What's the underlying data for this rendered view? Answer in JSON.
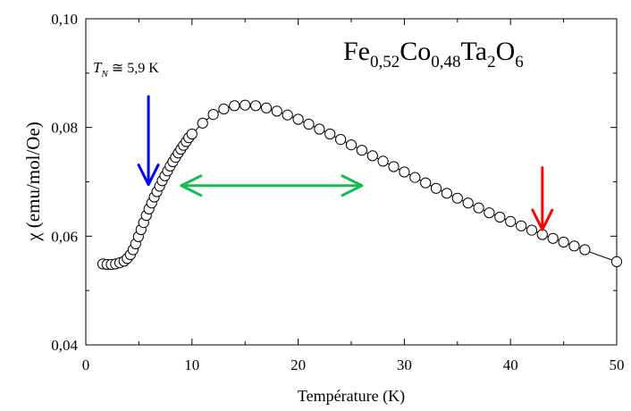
{
  "chart_data": {
    "type": "scatter",
    "title_parts": [
      {
        "text": "Fe",
        "sub": false
      },
      {
        "text": "0,52",
        "sub": true
      },
      {
        "text": "Co",
        "sub": false
      },
      {
        "text": "0,48",
        "sub": true
      },
      {
        "text": "Ta",
        "sub": false
      },
      {
        "text": "2",
        "sub": true
      },
      {
        "text": "O",
        "sub": false
      },
      {
        "text": "6",
        "sub": true
      }
    ],
    "xlabel": "Température (K)",
    "ylabel": "χ (emu/mol/Oe)",
    "xlim": [
      0,
      50
    ],
    "ylim": [
      0.04,
      0.1
    ],
    "xticks": [
      {
        "value": 0,
        "label": "0"
      },
      {
        "value": 10,
        "label": "10"
      },
      {
        "value": 20,
        "label": "20"
      },
      {
        "value": 30,
        "label": "30"
      },
      {
        "value": 40,
        "label": "40"
      },
      {
        "value": 50,
        "label": "50"
      }
    ],
    "yticks": [
      {
        "value": 0.04,
        "label": "0,04"
      },
      {
        "value": 0.06,
        "label": "0,06"
      },
      {
        "value": 0.08,
        "label": "0,08"
      },
      {
        "value": 0.1,
        "label": "0,10"
      }
    ],
    "grid": false,
    "series": [
      {
        "marker": "open-circle",
        "color": "#000000",
        "x": [
          1.6,
          2.0,
          2.4,
          2.8,
          3.2,
          3.6,
          3.9,
          4.2,
          4.45,
          4.7,
          4.95,
          5.2,
          5.45,
          5.7,
          5.95,
          6.2,
          6.45,
          6.7,
          6.95,
          7.2,
          7.45,
          7.7,
          7.95,
          8.2,
          8.45,
          8.7,
          8.95,
          9.2,
          9.45,
          9.7,
          10.0,
          11.0,
          12.0,
          13.0,
          14.0,
          15.0,
          16.0,
          17.0,
          18.0,
          19.0,
          20.0,
          21.0,
          22.0,
          23.0,
          24.0,
          25.0,
          26.0,
          27.0,
          28.0,
          29.0,
          30.0,
          31.0,
          32.0,
          33.0,
          34.0,
          35.0,
          36.0,
          37.0,
          38.0,
          39.0,
          40.0,
          41.0,
          42.0,
          43.0,
          44.0,
          45.0,
          46.0,
          47.0,
          50.0
        ],
        "y": [
          0.0549,
          0.0548,
          0.0548,
          0.0549,
          0.0551,
          0.0554,
          0.0559,
          0.0566,
          0.0575,
          0.0586,
          0.0599,
          0.0612,
          0.0625,
          0.0638,
          0.065,
          0.0661,
          0.0672,
          0.0682,
          0.0692,
          0.0702,
          0.0711,
          0.072,
          0.0729,
          0.0737,
          0.0745,
          0.0753,
          0.076,
          0.0767,
          0.0774,
          0.0781,
          0.0788,
          0.0808,
          0.0824,
          0.0834,
          0.084,
          0.0841,
          0.084,
          0.0836,
          0.083,
          0.0823,
          0.0815,
          0.0806,
          0.0797,
          0.0788,
          0.0778,
          0.0768,
          0.0758,
          0.0748,
          0.0738,
          0.0728,
          0.0718,
          0.0708,
          0.0698,
          0.0688,
          0.0679,
          0.067,
          0.0661,
          0.0652,
          0.0643,
          0.0635,
          0.0627,
          0.0619,
          0.0611,
          0.0603,
          0.0596,
          0.0589,
          0.0582,
          0.0575,
          0.0553
        ]
      }
    ],
    "fit_line": {
      "color": "#000000",
      "x": [
        1.6,
        3.0,
        4.0,
        5.0,
        6.0,
        7.0,
        8.0,
        9.0,
        10.0,
        11.0,
        12.0,
        13.0,
        14.0,
        15.0,
        16.0,
        18.0,
        20.0,
        22.0,
        25.0,
        28.0,
        30.0,
        33.0,
        35.0,
        38.0,
        40.0,
        42.0,
        44.0,
        46.0,
        48.0,
        50.0
      ],
      "y": [
        0.0549,
        0.0549,
        0.0561,
        0.0602,
        0.0652,
        0.0694,
        0.0731,
        0.0763,
        0.0788,
        0.0808,
        0.0824,
        0.0834,
        0.084,
        0.0841,
        0.084,
        0.083,
        0.0815,
        0.0797,
        0.0768,
        0.0738,
        0.0718,
        0.0688,
        0.067,
        0.0643,
        0.0627,
        0.0611,
        0.0596,
        0.0582,
        0.0567,
        0.0553
      ]
    },
    "annotations": {
      "tn_label": {
        "var": "T",
        "sub": "N",
        "rest": " ≅ 5,9 K"
      },
      "blue_arrow": {
        "color": "#0000ff",
        "x": 5.9,
        "y_from": 0.0857,
        "y_to": 0.0695
      },
      "green_arrow": {
        "color": "#1db954",
        "x_from": 9.0,
        "x_to": 26.0,
        "y": 0.0693
      },
      "red_arrow": {
        "color": "#ff0000",
        "x": 43.0,
        "y_from": 0.0726,
        "y_to": 0.0612
      }
    }
  }
}
